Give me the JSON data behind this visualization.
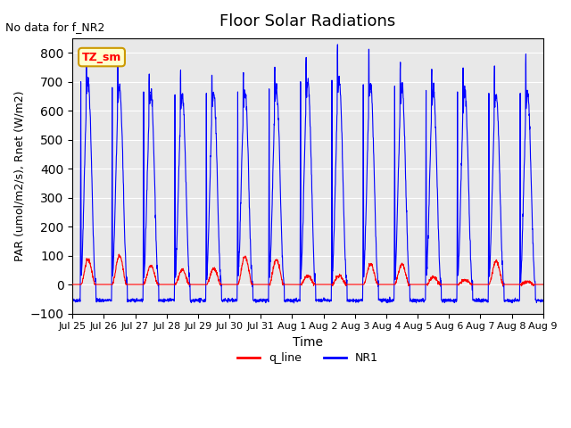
{
  "title": "Floor Solar Radiations",
  "no_data_text": "No data for f_NR2",
  "tz_label": "TZ_sm",
  "xlabel": "Time",
  "ylabel": "PAR (umol/m2/s), Rnet (W/m2)",
  "ylim": [
    -100,
    850
  ],
  "yticks": [
    -100,
    0,
    100,
    200,
    300,
    400,
    500,
    600,
    700,
    800
  ],
  "background_color": "#e8e8e8",
  "line1_color": "#ff0000",
  "line2_color": "#0000ff",
  "line1_label": "q_line",
  "line2_label": "NR1",
  "start_day": 25,
  "num_days": 15,
  "points_per_day": 144,
  "xtick_labels": [
    "Jul 25",
    "Jul 26",
    "Jul 27",
    "Jul 28",
    "Jul 29",
    "Jul 30",
    "Jul 31",
    "Aug 1",
    "Aug 2",
    "Aug 3",
    "Aug 4",
    "Aug 5",
    "Aug 6",
    "Aug 7",
    "Aug 8",
    "Aug 9"
  ],
  "NR1_peaks": [
    700,
    680,
    665,
    655,
    660,
    665,
    675,
    700,
    705,
    690,
    685,
    670,
    665,
    660,
    660
  ],
  "NR1_peaks2": [
    470,
    460,
    455,
    440,
    445,
    450,
    445,
    455,
    380,
    370,
    450,
    430,
    435,
    415,
    350
  ],
  "q_peaks": [
    85,
    100,
    65,
    50,
    55,
    95,
    85,
    30,
    30,
    70,
    70,
    25,
    15,
    80,
    10
  ],
  "NR1_trough": -55,
  "q_night": 0
}
